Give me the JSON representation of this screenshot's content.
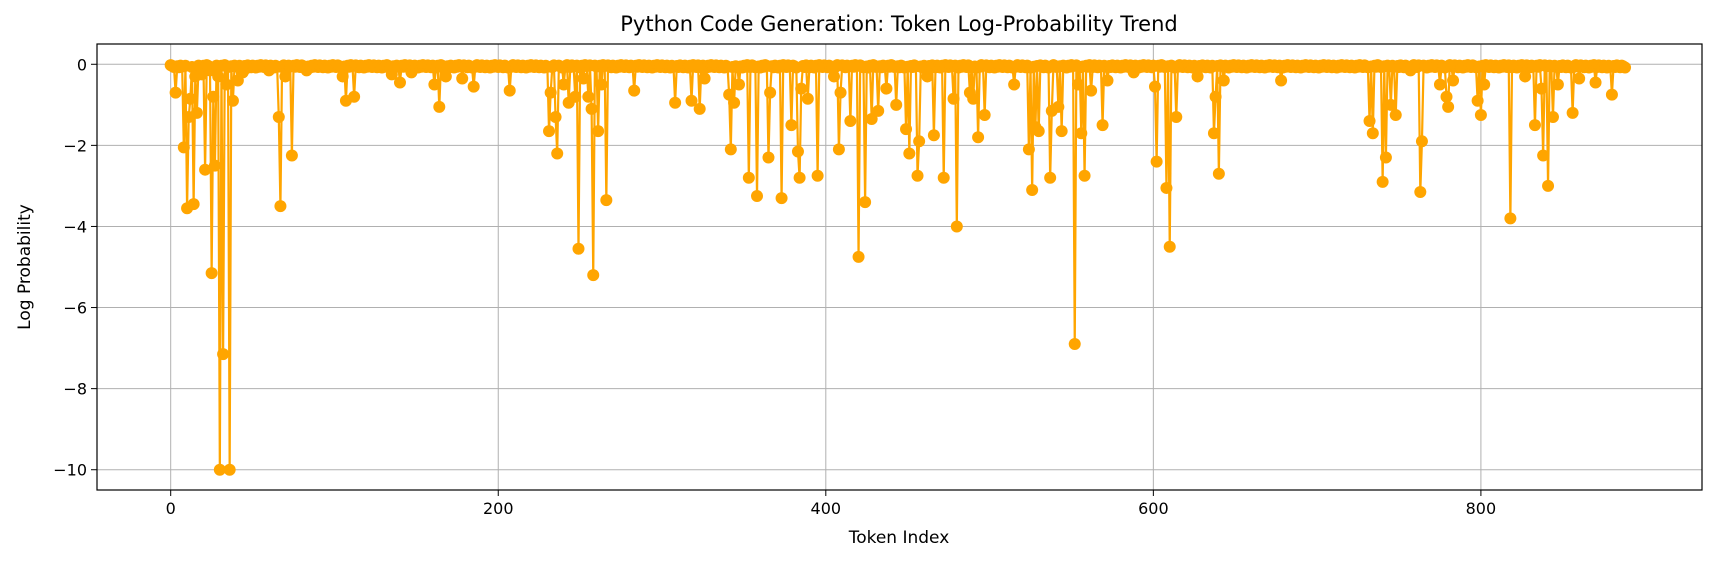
{
  "chart_data": {
    "type": "line",
    "title": "Python Code Generation: Token Log-Probability Trend",
    "xlabel": "Token Index",
    "ylabel": "Log Probability",
    "xlim": [
      -45,
      935
    ],
    "ylim": [
      -10.5,
      0.5
    ],
    "xticks": [
      0,
      200,
      400,
      600,
      800
    ],
    "yticks": [
      0,
      -2,
      -4,
      -6,
      -8,
      -10
    ],
    "grid": true,
    "colors": {
      "line": "#ffa500",
      "marker": "#ffa500",
      "grid": "#b0b0b0",
      "axes": "#000000"
    },
    "markers": "circle",
    "x_start": 0,
    "x_end": 888,
    "spikes": [
      [
        3,
        -0.7
      ],
      [
        8,
        -2.05
      ],
      [
        10,
        -3.55
      ],
      [
        11,
        -1.3
      ],
      [
        12,
        -0.85
      ],
      [
        14,
        -3.45
      ],
      [
        15,
        -0.3
      ],
      [
        16,
        -1.2
      ],
      [
        19,
        -0.25
      ],
      [
        21,
        -2.6
      ],
      [
        24,
        -0.15
      ],
      [
        25,
        -5.15
      ],
      [
        26,
        -0.8
      ],
      [
        27,
        -2.5
      ],
      [
        29,
        -0.3
      ],
      [
        30,
        -10.0
      ],
      [
        32,
        -7.15
      ],
      [
        34,
        -0.5
      ],
      [
        36,
        -10.0
      ],
      [
        38,
        -0.9
      ],
      [
        41,
        -0.4
      ],
      [
        44,
        -0.2
      ],
      [
        46,
        -0.1
      ],
      [
        60,
        -0.15
      ],
      [
        66,
        -1.3
      ],
      [
        67,
        -3.5
      ],
      [
        70,
        -0.3
      ],
      [
        74,
        -2.25
      ],
      [
        83,
        -0.15
      ],
      [
        105,
        -0.3
      ],
      [
        107,
        -0.9
      ],
      [
        112,
        -0.8
      ],
      [
        135,
        -0.25
      ],
      [
        140,
        -0.45
      ],
      [
        147,
        -0.2
      ],
      [
        161,
        -0.5
      ],
      [
        164,
        -1.05
      ],
      [
        168,
        -0.3
      ],
      [
        178,
        -0.35
      ],
      [
        185,
        -0.55
      ],
      [
        207,
        -0.65
      ],
      [
        231,
        -1.65
      ],
      [
        232,
        -0.7
      ],
      [
        235,
        -1.3
      ],
      [
        236,
        -2.2
      ],
      [
        240,
        -0.5
      ],
      [
        243,
        -0.95
      ],
      [
        247,
        -0.8
      ],
      [
        249,
        -4.55
      ],
      [
        252,
        -0.35
      ],
      [
        255,
        -0.8
      ],
      [
        257,
        -1.1
      ],
      [
        258,
        -5.2
      ],
      [
        261,
        -1.65
      ],
      [
        263,
        -0.5
      ],
      [
        266,
        -3.35
      ],
      [
        283,
        -0.65
      ],
      [
        308,
        -0.95
      ],
      [
        318,
        -0.9
      ],
      [
        323,
        -1.1
      ],
      [
        326,
        -0.35
      ],
      [
        341,
        -0.75
      ],
      [
        342,
        -2.1
      ],
      [
        344,
        -0.95
      ],
      [
        347,
        -0.5
      ],
      [
        353,
        -2.8
      ],
      [
        358,
        -3.25
      ],
      [
        365,
        -2.3
      ],
      [
        366,
        -0.7
      ],
      [
        373,
        -3.3
      ],
      [
        379,
        -1.5
      ],
      [
        383,
        -2.15
      ],
      [
        384,
        -2.8
      ],
      [
        385,
        -0.6
      ],
      [
        389,
        -0.85
      ],
      [
        395,
        -2.75
      ],
      [
        405,
        -0.3
      ],
      [
        408,
        -2.1
      ],
      [
        409,
        -0.7
      ],
      [
        415,
        -1.4
      ],
      [
        420,
        -4.75
      ],
      [
        424,
        -3.4
      ],
      [
        428,
        -1.35
      ],
      [
        432,
        -1.15
      ],
      [
        437,
        -0.6
      ],
      [
        443,
        -1.0
      ],
      [
        449,
        -1.6
      ],
      [
        451,
        -2.2
      ],
      [
        456,
        -2.75
      ],
      [
        457,
        -1.9
      ],
      [
        462,
        -0.3
      ],
      [
        466,
        -1.75
      ],
      [
        472,
        -2.8
      ],
      [
        478,
        -0.85
      ],
      [
        480,
        -4.0
      ],
      [
        488,
        -0.7
      ],
      [
        490,
        -0.85
      ],
      [
        493,
        -1.8
      ],
      [
        497,
        -1.25
      ],
      [
        515,
        -0.5
      ],
      [
        524,
        -2.1
      ],
      [
        526,
        -3.1
      ],
      [
        528,
        -1.55
      ],
      [
        530,
        -1.65
      ],
      [
        537,
        -2.8
      ],
      [
        538,
        -1.15
      ],
      [
        542,
        -1.05
      ],
      [
        544,
        -1.65
      ],
      [
        552,
        -6.9
      ],
      [
        554,
        -0.5
      ],
      [
        556,
        -1.7
      ],
      [
        558,
        -2.75
      ],
      [
        562,
        -0.65
      ],
      [
        569,
        -1.5
      ],
      [
        572,
        -0.4
      ],
      [
        588,
        -0.2
      ],
      [
        601,
        -0.55
      ],
      [
        602,
        -2.4
      ],
      [
        608,
        -3.05
      ],
      [
        610,
        -4.5
      ],
      [
        614,
        -1.3
      ],
      [
        627,
        -0.3
      ],
      [
        637,
        -1.7
      ],
      [
        638,
        -0.8
      ],
      [
        640,
        -2.7
      ],
      [
        643,
        -0.4
      ],
      [
        678,
        -0.4
      ],
      [
        732,
        -1.4
      ],
      [
        734,
        -1.7
      ],
      [
        740,
        -2.9
      ],
      [
        742,
        -2.3
      ],
      [
        745,
        -1.0
      ],
      [
        748,
        -1.25
      ],
      [
        757,
        -0.15
      ],
      [
        763,
        -3.15
      ],
      [
        764,
        -1.9
      ],
      [
        775,
        -0.5
      ],
      [
        779,
        -0.8
      ],
      [
        780,
        -1.05
      ],
      [
        783,
        -0.4
      ],
      [
        798,
        -0.9
      ],
      [
        800,
        -1.25
      ],
      [
        802,
        -0.5
      ],
      [
        818,
        -3.8
      ],
      [
        827,
        -0.3
      ],
      [
        833,
        -1.5
      ],
      [
        837,
        -0.6
      ],
      [
        838,
        -2.25
      ],
      [
        841,
        -3.0
      ],
      [
        844,
        -1.3
      ],
      [
        847,
        -0.5
      ],
      [
        856,
        -1.2
      ],
      [
        860,
        -0.35
      ],
      [
        870,
        -0.45
      ],
      [
        880,
        -0.75
      ]
    ]
  }
}
